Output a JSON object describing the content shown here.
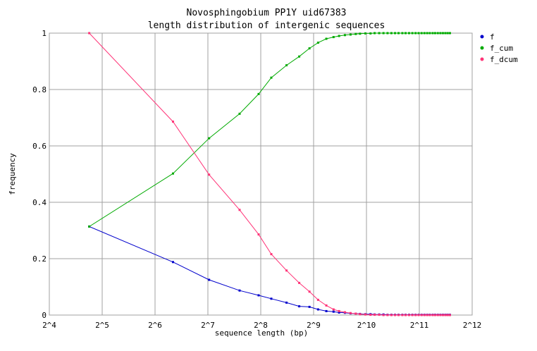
{
  "chart_data": {
    "type": "line",
    "title": "Novosphingobium PP1Y uid67383",
    "subtitle": "length distribution of intergenic sequences",
    "xlabel": "sequence length (bp)",
    "ylabel": "frequency",
    "xscale": "log2",
    "xlim": [
      16,
      4096
    ],
    "ylim": [
      0,
      1
    ],
    "xticks": [
      16,
      32,
      64,
      128,
      256,
      512,
      1024,
      2048,
      4096
    ],
    "xtick_labels": [
      "2^4",
      "2^5",
      "2^6",
      "2^7",
      "2^8",
      "2^9",
      "2^10",
      "2^11",
      "2^12"
    ],
    "yticks": [
      0,
      0.2,
      0.4,
      0.6,
      0.8,
      1
    ],
    "ytick_labels": [
      "0",
      "0.2",
      "0.4",
      "0.6",
      "0.8",
      "1"
    ],
    "grid": true,
    "legend_position": "right",
    "x": [
      27,
      81,
      130,
      194,
      249,
      294,
      359,
      424,
      485,
      543,
      605,
      665,
      715,
      772,
      831,
      890,
      941,
      1010,
      1080,
      1140,
      1210,
      1280,
      1350,
      1420,
      1490,
      1560,
      1640,
      1710,
      1790,
      1870,
      1950,
      2030,
      2110,
      2190,
      2270,
      2350,
      2440,
      2520,
      2610,
      2700,
      2790,
      2880,
      2970,
      3060
    ],
    "series": [
      {
        "name": "f",
        "color": "#0000cc",
        "values": [
          0.314,
          0.188,
          0.125,
          0.087,
          0.07,
          0.058,
          0.044,
          0.031,
          0.029,
          0.02,
          0.014,
          0.012,
          0.009,
          0.008,
          0.006,
          0.005,
          0.004,
          0.003,
          0.003,
          0.002,
          0.002,
          0.002,
          0.001,
          0.001,
          0.001,
          0.001,
          0.001,
          0.001,
          0.001,
          0.001,
          0.001,
          0.001,
          0.001,
          0.001,
          0.001,
          0.001,
          0.001,
          0.001,
          0.001,
          0.001,
          0.001,
          0.001,
          0.001,
          0.001
        ]
      },
      {
        "name": "f_cum",
        "color": "#00aa00",
        "values": [
          0.314,
          0.502,
          0.627,
          0.714,
          0.784,
          0.842,
          0.886,
          0.917,
          0.946,
          0.966,
          0.98,
          0.986,
          0.99,
          0.993,
          0.995,
          0.997,
          0.998,
          0.999,
          0.999,
          1,
          1,
          1,
          1,
          1,
          1,
          1,
          1,
          1,
          1,
          1,
          1,
          1,
          1,
          1,
          1,
          1,
          1,
          1,
          1,
          1,
          1,
          1,
          1,
          1
        ]
      },
      {
        "name": "f_dcum",
        "color": "#ff3377",
        "values": [
          1,
          0.686,
          0.498,
          0.373,
          0.286,
          0.216,
          0.158,
          0.114,
          0.083,
          0.054,
          0.034,
          0.02,
          0.014,
          0.01,
          0.007,
          0.005,
          0.003,
          0.002,
          0.001,
          0.001,
          0.001,
          0,
          0,
          0,
          0,
          0,
          0,
          0,
          0,
          0,
          0,
          0,
          0,
          0,
          0,
          0,
          0,
          0,
          0,
          0,
          0,
          0,
          0,
          0
        ]
      }
    ]
  }
}
